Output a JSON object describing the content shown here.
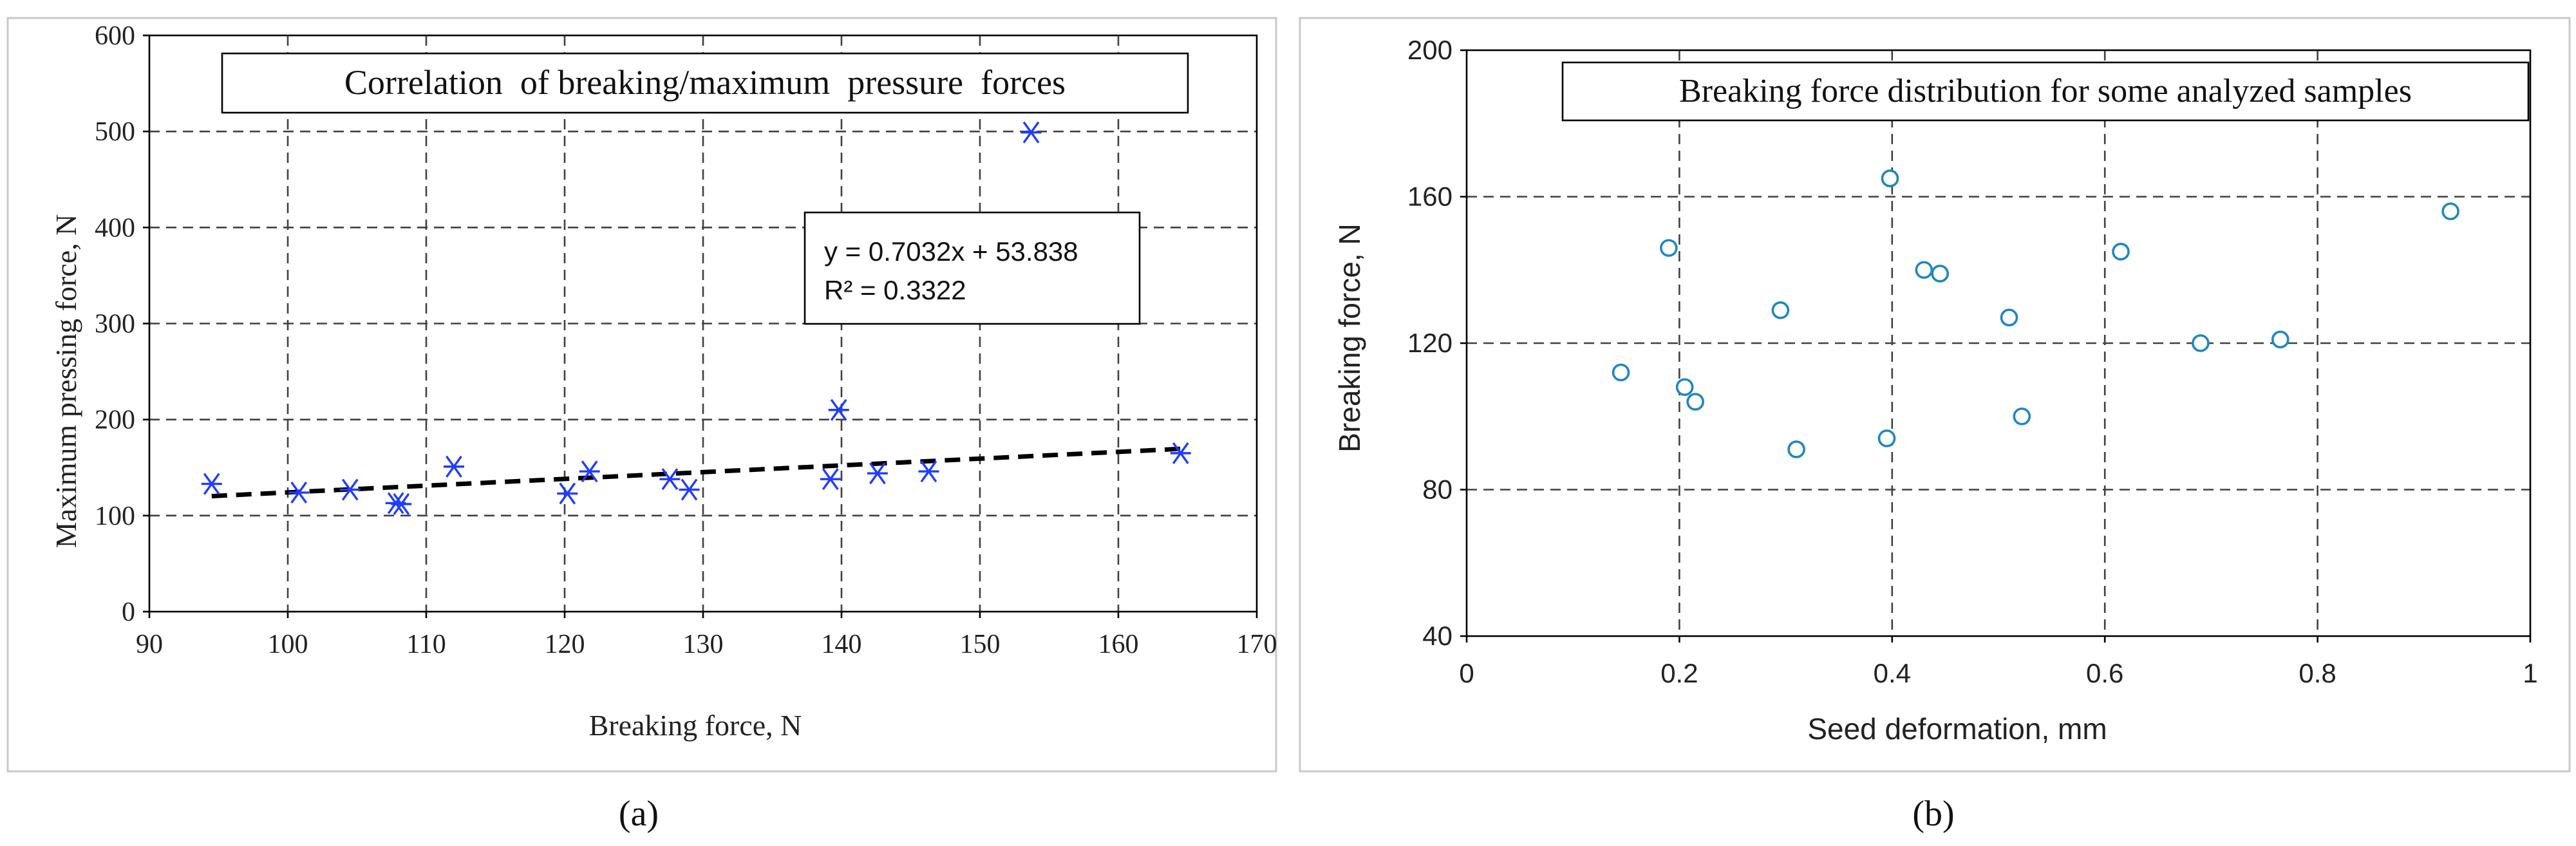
{
  "chart_data": [
    {
      "panel_label": "(a)",
      "type": "scatter",
      "title": "Correlation  of breaking/maximum  pressure  forces",
      "xlabel": "Breaking force, N",
      "ylabel": "Maximum pressing force, N",
      "xlim": [
        90,
        170
      ],
      "ylim": [
        0,
        600
      ],
      "xticks": [
        90,
        100,
        110,
        120,
        130,
        140,
        150,
        160,
        170
      ],
      "yticks": [
        0,
        100,
        200,
        300,
        400,
        500,
        600
      ],
      "grid": true,
      "marker": "asterisk",
      "points": [
        {
          "x": 94.5,
          "y": 133
        },
        {
          "x": 100.8,
          "y": 124
        },
        {
          "x": 104.5,
          "y": 127
        },
        {
          "x": 107.8,
          "y": 113
        },
        {
          "x": 108.2,
          "y": 112
        },
        {
          "x": 112.0,
          "y": 151
        },
        {
          "x": 120.2,
          "y": 123
        },
        {
          "x": 121.8,
          "y": 146
        },
        {
          "x": 127.6,
          "y": 138
        },
        {
          "x": 129.0,
          "y": 127
        },
        {
          "x": 139.2,
          "y": 138
        },
        {
          "x": 139.8,
          "y": 210
        },
        {
          "x": 142.6,
          "y": 144
        },
        {
          "x": 146.3,
          "y": 146
        },
        {
          "x": 153.7,
          "y": 499
        },
        {
          "x": 164.5,
          "y": 165
        }
      ],
      "trendline": {
        "slope": 0.7032,
        "intercept": 53.838,
        "x_range": [
          94.5,
          164.5
        ],
        "style": "dashed"
      },
      "equation_lines": [
        "y = 0.7032x + 53.838",
        "R² = 0.3322"
      ]
    },
    {
      "panel_label": "(b)",
      "type": "scatter",
      "title": "Breaking force distribution for some analyzed samples",
      "xlabel": "Seed deformation, mm",
      "ylabel": "Breaking force, N",
      "xlim": [
        0,
        1
      ],
      "ylim": [
        40,
        200
      ],
      "xticks": [
        0,
        0.2,
        0.4,
        0.6,
        0.8,
        1
      ],
      "yticks": [
        40,
        80,
        120,
        160,
        200
      ],
      "grid": true,
      "marker": "circle",
      "points": [
        {
          "x": 0.145,
          "y": 112
        },
        {
          "x": 0.19,
          "y": 146
        },
        {
          "x": 0.205,
          "y": 108
        },
        {
          "x": 0.215,
          "y": 104
        },
        {
          "x": 0.295,
          "y": 129
        },
        {
          "x": 0.31,
          "y": 91
        },
        {
          "x": 0.395,
          "y": 94
        },
        {
          "x": 0.398,
          "y": 165
        },
        {
          "x": 0.43,
          "y": 140
        },
        {
          "x": 0.445,
          "y": 139
        },
        {
          "x": 0.51,
          "y": 127
        },
        {
          "x": 0.522,
          "y": 100
        },
        {
          "x": 0.615,
          "y": 145
        },
        {
          "x": 0.69,
          "y": 120
        },
        {
          "x": 0.765,
          "y": 121
        },
        {
          "x": 0.925,
          "y": 156
        }
      ]
    }
  ]
}
